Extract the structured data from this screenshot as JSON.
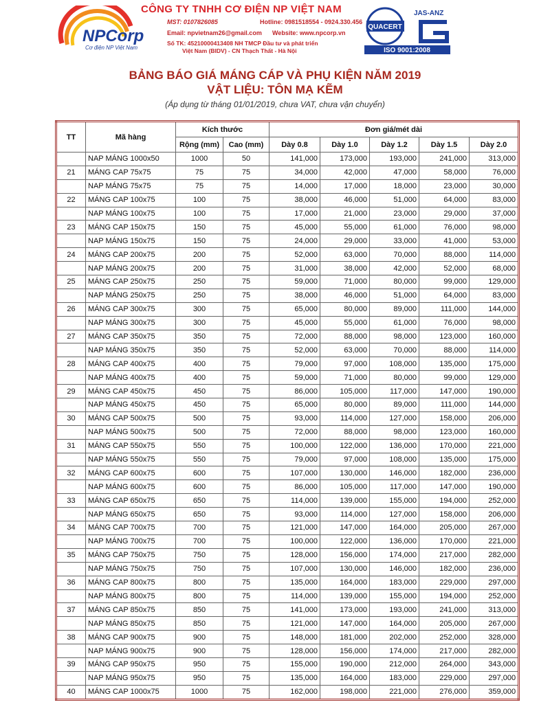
{
  "header": {
    "logo_text": "NPCorp",
    "logo_sub": "Cơ điện NP Việt Nam",
    "company": "CÔNG TY TNHH CƠ ĐIỆN NP VIỆT NAM",
    "mst": "MST: 0107826085",
    "hotline": "Hotline: 0981518554 - 0924.330.456",
    "email": "Email: npvietnam26@gmail.com",
    "website": "Website: www.npcorp.vn",
    "bank_1": "Số TK: 45210000413408 NH TMCP Đầu tư và phát triển",
    "bank_2": "Việt Nam (BIDV) - CN Thạch Thất - Hà Nội",
    "cert_name": "QUACERT",
    "cert_accr": "JAS-ANZ",
    "cert_iso": "ISO 9001:2008"
  },
  "title": "BẢNG BÁO GIÁ MÁNG CÁP VÀ PHỤ KIỆN NĂM 2019",
  "subtitle": "VẬT LIỆU: TÔN MẠ KẼM",
  "note": "(Áp dụng từ tháng 01/01/2019, chưa VAT, chưa vận chuyển)",
  "table": {
    "head": {
      "tt": "TT",
      "code": "Mã hàng",
      "size": "Kích thước",
      "price": "Đơn giá/mét dài",
      "sub": [
        "Rộng (mm)",
        "Cao (mm)",
        "Dày 0.8",
        "Dày 1.0",
        "Dày 1.2",
        "Dày 1.5",
        "Dày 2.0"
      ]
    },
    "rows": [
      [
        null,
        "NAP MÁNG 1000x50",
        "1000",
        "50",
        "141,000",
        "173,000",
        "193,000",
        "241,000",
        "313,000"
      ],
      [
        "21",
        "MÁNG CAP 75x75",
        "75",
        "75",
        "34,000",
        "42,000",
        "47,000",
        "58,000",
        "76,000"
      ],
      [
        null,
        "NAP MÁNG 75x75",
        "75",
        "75",
        "14,000",
        "17,000",
        "18,000",
        "23,000",
        "30,000"
      ],
      [
        "22",
        "MÁNG CAP 100x75",
        "100",
        "75",
        "38,000",
        "46,000",
        "51,000",
        "64,000",
        "83,000"
      ],
      [
        null,
        "NAP MÁNG 100x75",
        "100",
        "75",
        "17,000",
        "21,000",
        "23,000",
        "29,000",
        "37,000"
      ],
      [
        "23",
        "MÁNG CAP 150x75",
        "150",
        "75",
        "45,000",
        "55,000",
        "61,000",
        "76,000",
        "98,000"
      ],
      [
        null,
        "NAP MÁNG 150x75",
        "150",
        "75",
        "24,000",
        "29,000",
        "33,000",
        "41,000",
        "53,000"
      ],
      [
        "24",
        "MÁNG CAP 200x75",
        "200",
        "75",
        "52,000",
        "63,000",
        "70,000",
        "88,000",
        "114,000"
      ],
      [
        null,
        "NAP MÁNG 200x75",
        "200",
        "75",
        "31,000",
        "38,000",
        "42,000",
        "52,000",
        "68,000"
      ],
      [
        "25",
        "MÁNG CAP 250x75",
        "250",
        "75",
        "59,000",
        "71,000",
        "80,000",
        "99,000",
        "129,000"
      ],
      [
        null,
        "NAP MÁNG 250x75",
        "250",
        "75",
        "38,000",
        "46,000",
        "51,000",
        "64,000",
        "83,000"
      ],
      [
        "26",
        "MÁNG CAP 300x75",
        "300",
        "75",
        "65,000",
        "80,000",
        "89,000",
        "111,000",
        "144,000"
      ],
      [
        null,
        "NAP MÁNG 300x75",
        "300",
        "75",
        "45,000",
        "55,000",
        "61,000",
        "76,000",
        "98,000"
      ],
      [
        "27",
        "MÁNG CAP 350x75",
        "350",
        "75",
        "72,000",
        "88,000",
        "98,000",
        "123,000",
        "160,000"
      ],
      [
        null,
        "NAP MÁNG 350x75",
        "350",
        "75",
        "52,000",
        "63,000",
        "70,000",
        "88,000",
        "114,000"
      ],
      [
        "28",
        "MÁNG CAP 400x75",
        "400",
        "75",
        "79,000",
        "97,000",
        "108,000",
        "135,000",
        "175,000"
      ],
      [
        null,
        "NAP MÁNG 400x75",
        "400",
        "75",
        "59,000",
        "71,000",
        "80,000",
        "99,000",
        "129,000"
      ],
      [
        "29",
        "MÁNG CAP 450x75",
        "450",
        "75",
        "86,000",
        "105,000",
        "117,000",
        "147,000",
        "190,000"
      ],
      [
        null,
        "NAP MÁNG 450x75",
        "450",
        "75",
        "65,000",
        "80,000",
        "89,000",
        "111,000",
        "144,000"
      ],
      [
        "30",
        "MÁNG CAP 500x75",
        "500",
        "75",
        "93,000",
        "114,000",
        "127,000",
        "158,000",
        "206,000"
      ],
      [
        null,
        "NAP MÁNG 500x75",
        "500",
        "75",
        "72,000",
        "88,000",
        "98,000",
        "123,000",
        "160,000"
      ],
      [
        "31",
        "MÁNG CAP 550x75",
        "550",
        "75",
        "100,000",
        "122,000",
        "136,000",
        "170,000",
        "221,000"
      ],
      [
        null,
        "NAP MÁNG 550x75",
        "550",
        "75",
        "79,000",
        "97,000",
        "108,000",
        "135,000",
        "175,000"
      ],
      [
        "32",
        "MÁNG CAP 600x75",
        "600",
        "75",
        "107,000",
        "130,000",
        "146,000",
        "182,000",
        "236,000"
      ],
      [
        null,
        "NAP MÁNG 600x75",
        "600",
        "75",
        "86,000",
        "105,000",
        "117,000",
        "147,000",
        "190,000"
      ],
      [
        "33",
        "MÁNG CAP 650x75",
        "650",
        "75",
        "114,000",
        "139,000",
        "155,000",
        "194,000",
        "252,000"
      ],
      [
        null,
        "NAP MÁNG 650x75",
        "650",
        "75",
        "93,000",
        "114,000",
        "127,000",
        "158,000",
        "206,000"
      ],
      [
        "34",
        "MÁNG CAP 700x75",
        "700",
        "75",
        "121,000",
        "147,000",
        "164,000",
        "205,000",
        "267,000"
      ],
      [
        null,
        "NAP MÁNG 700x75",
        "700",
        "75",
        "100,000",
        "122,000",
        "136,000",
        "170,000",
        "221,000"
      ],
      [
        "35",
        "MÁNG CAP 750x75",
        "750",
        "75",
        "128,000",
        "156,000",
        "174,000",
        "217,000",
        "282,000"
      ],
      [
        null,
        "NAP MÁNG 750x75",
        "750",
        "75",
        "107,000",
        "130,000",
        "146,000",
        "182,000",
        "236,000"
      ],
      [
        "36",
        "MÁNG CAP 800x75",
        "800",
        "75",
        "135,000",
        "164,000",
        "183,000",
        "229,000",
        "297,000"
      ],
      [
        null,
        "NAP MÁNG 800x75",
        "800",
        "75",
        "114,000",
        "139,000",
        "155,000",
        "194,000",
        "252,000"
      ],
      [
        "37",
        "MÁNG CAP 850x75",
        "850",
        "75",
        "141,000",
        "173,000",
        "193,000",
        "241,000",
        "313,000"
      ],
      [
        null,
        "NAP MÁNG 850x75",
        "850",
        "75",
        "121,000",
        "147,000",
        "164,000",
        "205,000",
        "267,000"
      ],
      [
        "38",
        "MÁNG CAP 900x75",
        "900",
        "75",
        "148,000",
        "181,000",
        "202,000",
        "252,000",
        "328,000"
      ],
      [
        null,
        "NAP MÁNG 900x75",
        "900",
        "75",
        "128,000",
        "156,000",
        "174,000",
        "217,000",
        "282,000"
      ],
      [
        "39",
        "MÁNG CAP 950x75",
        "950",
        "75",
        "155,000",
        "190,000",
        "212,000",
        "264,000",
        "343,000"
      ],
      [
        null,
        "NAP MÁNG 950x75",
        "950",
        "75",
        "135,000",
        "164,000",
        "183,000",
        "229,000",
        "297,000"
      ],
      [
        "40",
        "MÁNG CAP 1000x75",
        "1000",
        "75",
        "162,000",
        "198,000",
        "221,000",
        "276,000",
        "359,000"
      ]
    ]
  }
}
